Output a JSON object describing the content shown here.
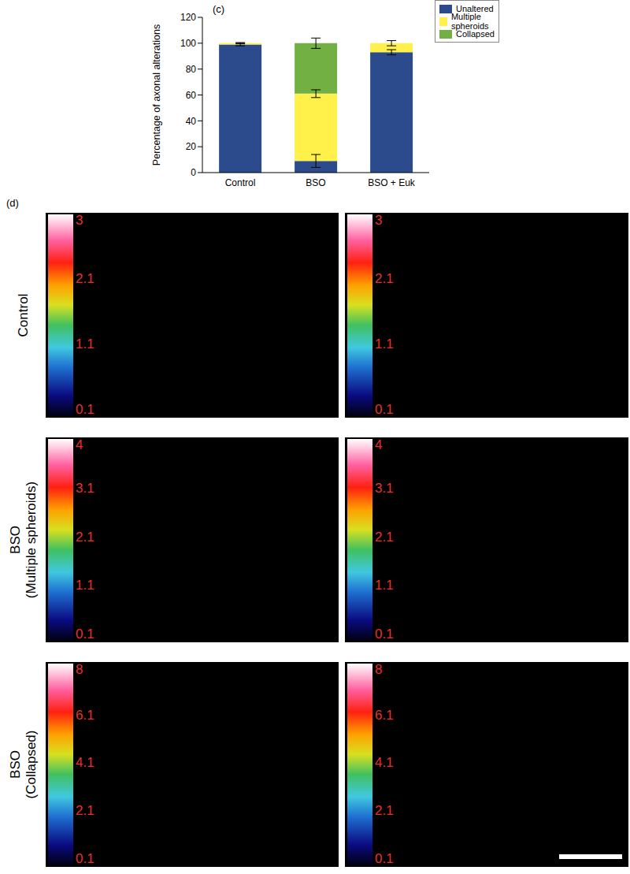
{
  "chart_data": {
    "type": "bar",
    "title": "(c)",
    "stacked": true,
    "grid": false,
    "legend": "upper right",
    "ylabel": "Percentage of axonal alterations",
    "categories": [
      "Control",
      "BSO",
      "BSO + Euk"
    ],
    "ylim": [
      0,
      120
    ],
    "yticks": [
      0,
      20,
      40,
      60,
      80,
      100,
      120
    ],
    "series": [
      {
        "name": "Unaltered",
        "color": "#2b4b8c",
        "values": [
          99,
          9,
          93
        ],
        "errors": [
          1,
          5,
          2
        ]
      },
      {
        "name": "Multiple spheroids",
        "color": "#fff04a",
        "values": [
          1,
          52,
          7
        ],
        "errors": [
          0.5,
          3,
          2
        ]
      },
      {
        "name": "Collapsed",
        "color": "#72b043",
        "values": [
          0,
          39,
          0
        ],
        "errors": [
          0,
          4,
          0
        ]
      }
    ]
  },
  "panel_d": {
    "label": "(d)",
    "rows": [
      {
        "label": [
          "Control"
        ],
        "colorbar": {
          "range": [
            0.1,
            3
          ],
          "ticks": [
            3,
            2.1,
            1.1,
            0.1
          ]
        }
      },
      {
        "label": [
          "BSO",
          "(Multiple spheroids)"
        ],
        "colorbar": {
          "range": [
            0.1,
            4
          ],
          "ticks": [
            4,
            3.1,
            2.1,
            1.1,
            0.1
          ]
        }
      },
      {
        "label": [
          "BSO",
          "(Collapsed)"
        ],
        "colorbar": {
          "range": [
            0.1,
            8
          ],
          "ticks": [
            8,
            6.1,
            4.1,
            2.1,
            0.1
          ]
        }
      }
    ]
  }
}
